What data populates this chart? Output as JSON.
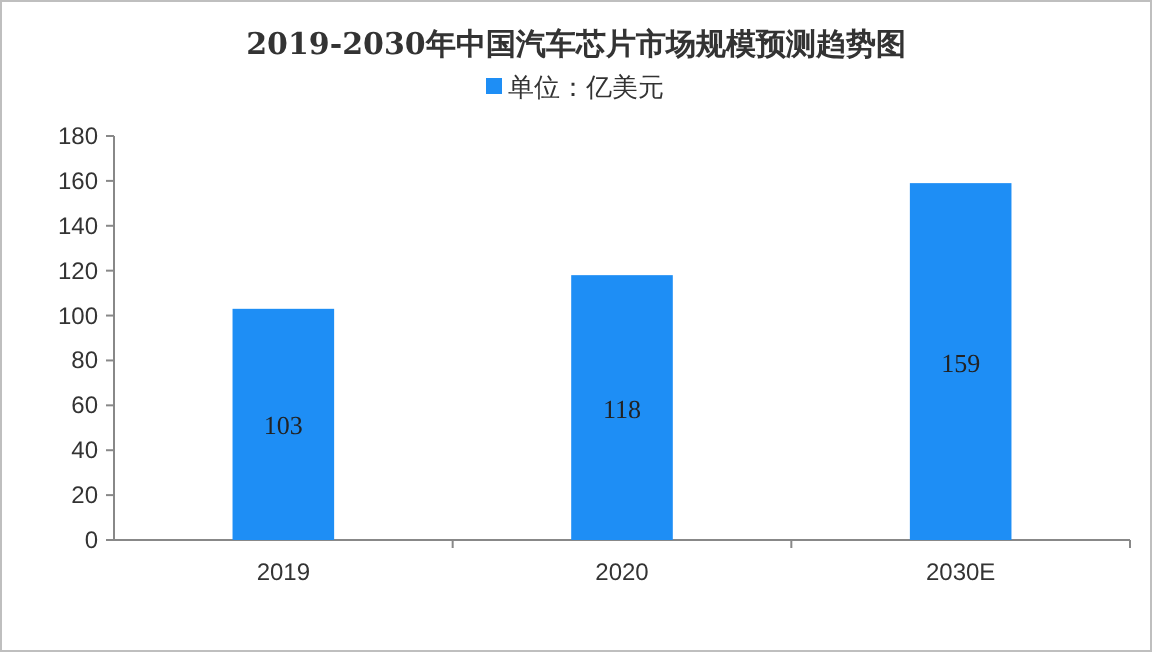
{
  "chart_data": {
    "type": "bar",
    "title": "2019-2030年中国汽车芯片市场规模预测趋势图",
    "categories": [
      "2019",
      "2020",
      "2030E"
    ],
    "series": [
      {
        "name": "单位：亿美元",
        "color": "#1e8ef5",
        "values": [
          103,
          118,
          159
        ]
      }
    ],
    "ylim": [
      0,
      180
    ],
    "yticks": [
      0,
      20,
      40,
      60,
      80,
      100,
      120,
      140,
      160,
      180
    ],
    "legend": "top",
    "data_labels": true
  }
}
